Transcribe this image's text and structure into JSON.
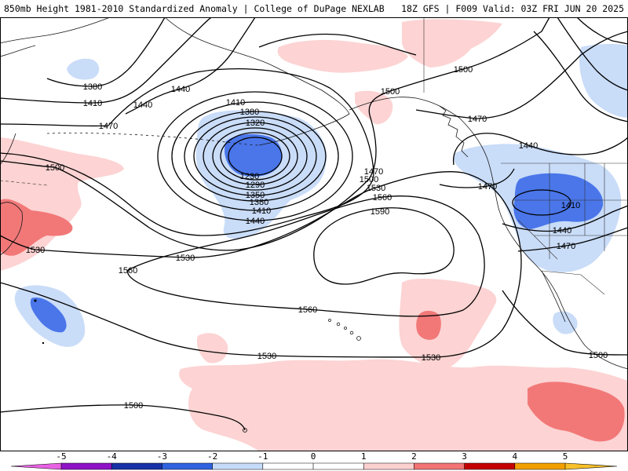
{
  "header": {
    "left": "850mb Height 1981-2010 Standardized Anomaly | College of DuPage NEXLAB",
    "right": "18Z GFS | F009 Valid: 03Z FRI JUN 20 2025"
  },
  "shading_colors": {
    "light_blue": "#c9dcf8",
    "blue": "#4a76ea",
    "pale_pink": "#fdd3d3",
    "salmon": "#f27878"
  },
  "colorbar": {
    "ticks": [
      "-5",
      "-4",
      "-3",
      "-2",
      "-1",
      "0",
      "1",
      "2",
      "3",
      "4",
      "5"
    ],
    "colors": [
      "#e862e4",
      "#8e12c6",
      "#1830a6",
      "#2f62de",
      "#c6dbf8",
      "#ffffff",
      "#ffffff",
      "#fdd0d0",
      "#f27474",
      "#c40000",
      "#f2a000",
      "#f8c02a"
    ]
  },
  "contour_labels": [
    "1380",
    "1410",
    "1440",
    "1440",
    "1470",
    "1410",
    "1380",
    "1320",
    "1230",
    "1290",
    "1350",
    "1380",
    "1410",
    "1440",
    "1470",
    "1500",
    "1530",
    "1560",
    "1590",
    "1500",
    "1530",
    "1530",
    "1560",
    "1560",
    "1530",
    "1530",
    "1500",
    "1500",
    "1500",
    "1470",
    "1440",
    "1470",
    "1410",
    "1440",
    "1470",
    "1500"
  ]
}
